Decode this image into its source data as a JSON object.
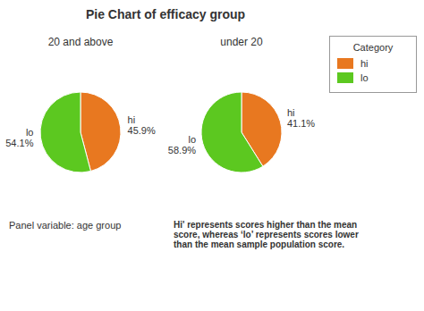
{
  "title": "Pie Chart of efficacy group",
  "legend": "upper right",
  "legend_title": "Category",
  "annotations": [
    "Panel variable: age group",
    "Hi' represents scores higher than the mean\nscore, whereas ‘lo’ represents scores lower\nthan the mean sample population score."
  ],
  "chart_data": [
    {
      "type": "pie",
      "title": "20 and above",
      "categories": [
        "hi",
        "lo"
      ],
      "values": [
        45.9,
        54.1
      ],
      "value_labels": [
        "45.9%",
        "54.1%"
      ],
      "colors": [
        "#e87820",
        "#5cc820"
      ],
      "data_labels": true
    },
    {
      "type": "pie",
      "title": "under 20",
      "categories": [
        "hi",
        "lo"
      ],
      "values": [
        41.1,
        58.9
      ],
      "value_labels": [
        "41.1%",
        "58.9%"
      ],
      "colors": [
        "#e87820",
        "#5cc820"
      ],
      "data_labels": true
    }
  ]
}
